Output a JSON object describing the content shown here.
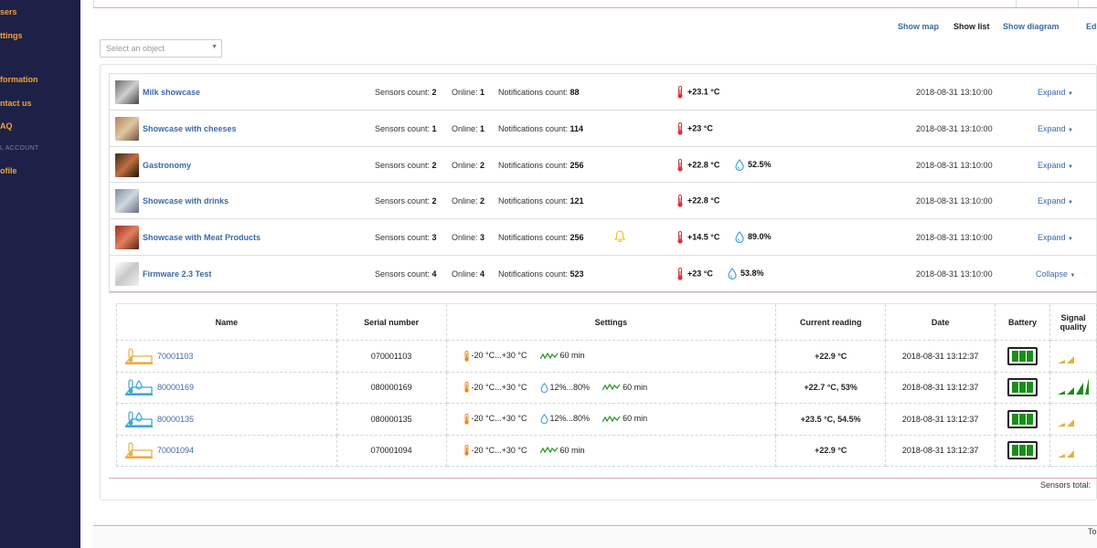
{
  "sidebar": {
    "items": [
      {
        "label": "sers",
        "top": 8
      },
      {
        "label": "ttings",
        "top": 34
      }
    ],
    "items2": [
      {
        "label": "formation"
      },
      {
        "label": "ntact us"
      },
      {
        "label": "AQ"
      },
      {
        "label": "ofile"
      }
    ],
    "section": "L ACCOUNT"
  },
  "view_links": {
    "map": "Show map",
    "list": "Show list",
    "diagram": "Show diagram",
    "edit": "Ed"
  },
  "object_select": {
    "placeholder": "Select an object"
  },
  "stat_labels": {
    "sensors": "Sensors count:",
    "online": "Online:",
    "notifications": "Notifications count:"
  },
  "objects": [
    {
      "name": "Milk showcase",
      "sensors": "2",
      "online": "1",
      "notifications": "88",
      "temp": "+23.1 °C",
      "humidity": "",
      "time": "2018-08-31 13:10:00",
      "action": "Expand"
    },
    {
      "name": "Showcase with cheeses",
      "sensors": "1",
      "online": "1",
      "notifications": "114",
      "temp": "+23 °C",
      "humidity": "",
      "time": "2018-08-31 13:10:00",
      "action": "Expand"
    },
    {
      "name": "Gastronomy",
      "sensors": "2",
      "online": "2",
      "notifications": "256",
      "temp": "+22.8 °C",
      "humidity": "52.5%",
      "time": "2018-08-31 13:10:00",
      "action": "Expand"
    },
    {
      "name": "Showcase with drinks",
      "sensors": "2",
      "online": "2",
      "notifications": "121",
      "temp": "+22.8 °C",
      "humidity": "",
      "time": "2018-08-31 13:10:00",
      "action": "Expand"
    },
    {
      "name": "Showcase with Meat Products",
      "sensors": "3",
      "online": "3",
      "notifications": "256",
      "temp": "+14.5 °C",
      "humidity": "89.0%",
      "time": "2018-08-31 13:10:00",
      "action": "Expand"
    },
    {
      "name": "Firmware 2.3 Test",
      "sensors": "4",
      "online": "4",
      "notifications": "523",
      "temp": "+23 °C",
      "humidity": "53.8%",
      "time": "2018-08-31 13:10:00",
      "action": "Collapse"
    }
  ],
  "sensor_table": {
    "headers": {
      "name": "Name",
      "serial": "Serial number",
      "settings": "Settings",
      "reading": "Current reading",
      "date": "Date",
      "battery": "Battery",
      "signal_line1": "Signal",
      "signal_line2": "quality"
    },
    "rows": [
      {
        "name": "70001103",
        "serial": "070001103",
        "temp_range": "-20 °C...+30 °C",
        "hum_range": "",
        "interval": "60 min",
        "reading": "+22.9 °C",
        "date": "2018-08-31 13:12:37",
        "signal_bars": 2,
        "icon_color": "#e8b040"
      },
      {
        "name": "80000169",
        "serial": "080000169",
        "temp_range": "-20 °C...+30 °C",
        "hum_range": "12%...80%",
        "interval": "60 min",
        "reading": "+22.7 °C, 53%",
        "date": "2018-08-31 13:12:37",
        "signal_bars": 4,
        "icon_color": "#3fa6d8"
      },
      {
        "name": "80000135",
        "serial": "080000135",
        "temp_range": "-20 °C...+30 °C",
        "hum_range": "12%...80%",
        "interval": "60 min",
        "reading": "+23.5 °C, 54.5%",
        "date": "2018-08-31 13:12:37",
        "signal_bars": 2,
        "icon_color": "#3fa6d8"
      },
      {
        "name": "70001094",
        "serial": "070001094",
        "temp_range": "-20 °C...+30 °C",
        "hum_range": "",
        "interval": "60 min",
        "reading": "+22.9 °C",
        "date": "2018-08-31 13:12:37",
        "signal_bars": 2,
        "icon_color": "#e8b040"
      }
    ]
  },
  "sensors_total": "Sensors total: ",
  "footer": "To",
  "colors": {
    "sidebar_bg": "#1d2147",
    "sidebar_text": "#f0a23a",
    "link": "#3b6aa6",
    "battery": "#1a8d1a",
    "signal_strong": "#1a8d1a",
    "signal_medium": "#e8b040",
    "thermometer": "#d9343a",
    "droplet": "#3fa6d8"
  }
}
